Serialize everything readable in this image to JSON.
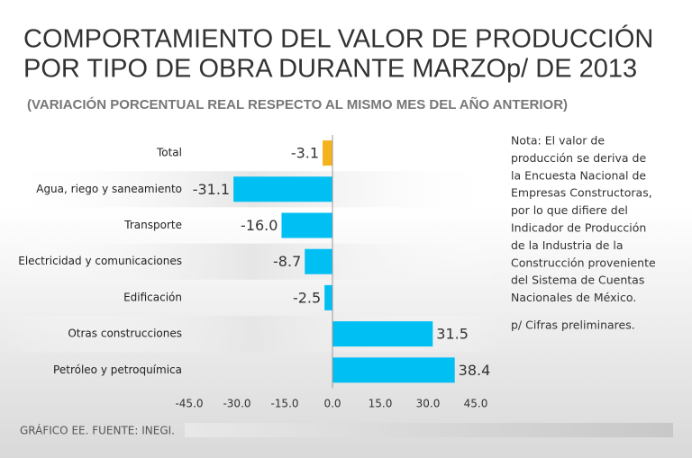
{
  "chart_data": {
    "type": "bar",
    "orientation": "horizontal",
    "title": [
      "COMPORTAMIENTO DEL VALOR DE PRODUCCIÓN",
      "POR TIPO DE OBRA DURANTE MARZOp/ DE 2013"
    ],
    "subtitle": "(VARIACIÓN PORCENTUAL REAL RESPECTO AL MISMO MES DEL AÑO ANTERIOR)",
    "categories": [
      "Total",
      "Agua, riego y saneamiento",
      "Transporte",
      "Electricidad y comunicaciones",
      "Edificación",
      "Otras construcciones",
      "Petróleo y petroquímica"
    ],
    "values": [
      -3.1,
      -31.1,
      -16.0,
      -8.7,
      -2.5,
      31.5,
      38.4
    ],
    "value_labels": [
      "-3.1",
      "-31.1",
      "-16.0",
      "-8.7",
      "-2.5",
      "31.5",
      "38.4"
    ],
    "colors": [
      "#f6b21b",
      "#00bff3",
      "#00bff3",
      "#00bff3",
      "#00bff3",
      "#00bff3",
      "#00bff3"
    ],
    "xlim": [
      -45,
      45
    ],
    "xticks": [
      {
        "value": -45,
        "label": "-45.0"
      },
      {
        "value": -30,
        "label": "-30.0"
      },
      {
        "value": -15,
        "label": "-15.0"
      },
      {
        "value": 0,
        "label": "0.0"
      },
      {
        "value": 15,
        "label": "15.0"
      },
      {
        "value": 30,
        "label": "30.0"
      },
      {
        "value": 45,
        "label": "45.0"
      }
    ],
    "note": [
      "Nota: El valor de",
      "producción se deriva de",
      "la Encuesta Nacional de",
      "Empresas Constructoras,",
      "por lo que difiere del",
      "Indicador de Producción",
      "de la Industria de la",
      "Construcción proveniente",
      "del Sistema de Cuentas",
      "Nacionales de México."
    ],
    "footnote": "p/ Cifras preliminares.",
    "source": "GRÁFICO EE. FUENTE: INEGI."
  }
}
